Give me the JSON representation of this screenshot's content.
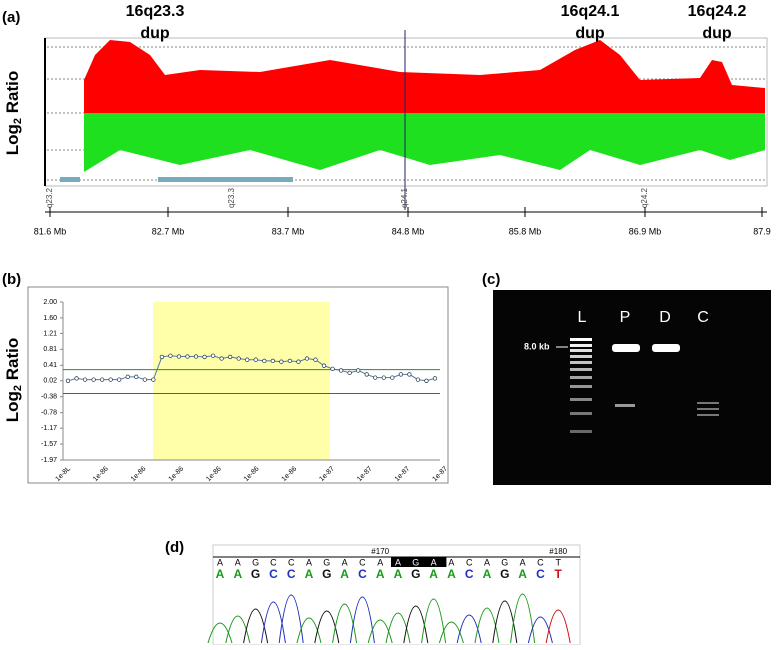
{
  "panel_a": {
    "label": "(a)",
    "dup_labels": [
      [
        "16q23.3",
        "dup"
      ],
      [
        "16q24.1",
        "dup"
      ],
      [
        "16q24.2",
        "dup"
      ]
    ],
    "y_label": "Log",
    "y_label_sub": "2",
    "y_label_rest": " Ratio",
    "bands": [
      "q23.2",
      "q23.3",
      "q24.1",
      "q24.2"
    ],
    "positions": [
      "81.6 Mb",
      "82.7 Mb",
      "83.7 Mb",
      "84.8 Mb",
      "85.8 Mb",
      "86.9 Mb",
      "87.9"
    ]
  },
  "panel_b": {
    "label": "(b)",
    "y_label": "Log",
    "y_label_sub": "2",
    "y_label_rest": " Ratio",
    "ylim": [
      -1.97,
      2.0
    ],
    "yticks": [
      {
        "value": 2.0,
        "label": "2.00"
      },
      {
        "value": 1.6,
        "label": "1.60"
      },
      {
        "value": 1.21,
        "label": "1.21"
      },
      {
        "value": 0.81,
        "label": "0.81"
      },
      {
        "value": 0.41,
        "label": "0.41"
      },
      {
        "value": 0.02,
        "label": "0.02"
      },
      {
        "value": -0.38,
        "label": "-0.38"
      },
      {
        "value": -0.78,
        "label": "-0.78"
      },
      {
        "value": -1.17,
        "label": "-1.17"
      },
      {
        "value": -1.57,
        "label": "-1.57"
      },
      {
        "value": -1.97,
        "label": "-1.97"
      }
    ],
    "xticks": [
      "1e-8L",
      "1e-86",
      "1e-86",
      "1e-86",
      "1e-86",
      "1e-86",
      "1e-86",
      "1e-87",
      "1e-87",
      "1e-87",
      "1e-87"
    ],
    "values": [
      0.02,
      0.08,
      0.05,
      0.05,
      0.05,
      0.05,
      0.05,
      0.12,
      0.12,
      0.05,
      0.05,
      0.62,
      0.65,
      0.63,
      0.63,
      0.63,
      0.62,
      0.65,
      0.58,
      0.62,
      0.58,
      0.55,
      0.55,
      0.52,
      0.52,
      0.5,
      0.52,
      0.5,
      0.58,
      0.55,
      0.4,
      0.32,
      0.28,
      0.22,
      0.28,
      0.18,
      0.1,
      0.1,
      0.1,
      0.18,
      0.18,
      0.05,
      0.02,
      0.08
    ],
    "upper_threshold": 0.3,
    "lower_threshold": -0.3
  },
  "panel_c": {
    "label": "(c)",
    "lanes": [
      "L",
      "P",
      "D",
      "C"
    ],
    "size_marker": "8.0 kb"
  },
  "panel_d": {
    "label": "(d)",
    "markers": [
      "#170",
      "#180"
    ],
    "sequence_top": [
      "A",
      "A",
      "G",
      "C",
      "C",
      "A",
      "G",
      "A",
      "C",
      "A",
      "A",
      "G",
      "A",
      "A",
      "C",
      "A",
      "G",
      "A",
      "C",
      "T"
    ],
    "sequence_bottom": [
      "A",
      "A",
      "G",
      "C",
      "C",
      "A",
      "G",
      "A",
      "C",
      "A",
      "A",
      "G",
      "A",
      "A",
      "C",
      "A",
      "G",
      "A",
      "C",
      "T"
    ]
  }
}
